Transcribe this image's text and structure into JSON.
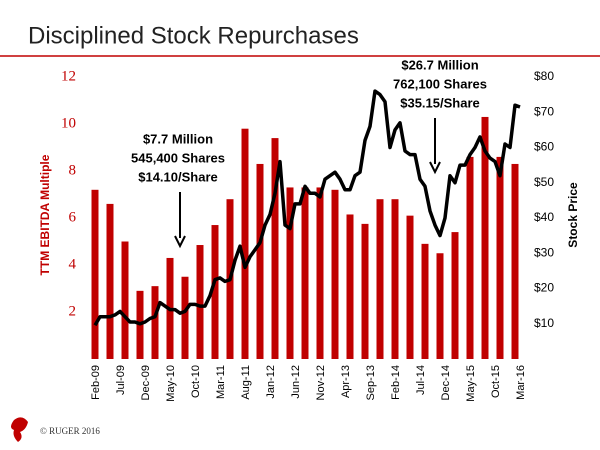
{
  "chart_data": {
    "type": "bar",
    "title": "Disciplined Stock Repurchases",
    "ylabel": "TTM EBITDA Multiple",
    "y2label": "Stock Price",
    "footer": "© RUGER 2016",
    "categories": [
      "Feb-09",
      null,
      null,
      null,
      null,
      "Jul-09",
      null,
      null,
      null,
      null,
      "Dec-09",
      null,
      null,
      null,
      null,
      "May-10",
      null,
      null,
      null,
      null,
      "Oct-10",
      null,
      null,
      null,
      null,
      "Mar-11",
      null,
      null,
      null,
      null,
      "Aug-11",
      null,
      null,
      null,
      null,
      "Jan-12",
      null,
      null,
      null,
      null,
      "Jun-12",
      null,
      null,
      null,
      null,
      "Nov-12",
      null,
      null,
      null,
      null,
      "Apr-13",
      null,
      null,
      null,
      null,
      "Sep-13",
      null,
      null,
      null,
      null,
      "Feb-14",
      null,
      null,
      null,
      null,
      "Jul-14",
      null,
      null,
      null,
      null,
      "Dec-14",
      null,
      null,
      null,
      null,
      "May-15",
      null,
      null,
      null,
      null,
      "Oct-15",
      null,
      null,
      null,
      null,
      "Mar-16"
    ],
    "series": [
      {
        "type": "bar",
        "color": "#c00000",
        "values": [
          7.2,
          null,
          null,
          6.6,
          null,
          null,
          5.0,
          null,
          null,
          2.9,
          null,
          null,
          3.1,
          null,
          null,
          4.3,
          null,
          null,
          3.5,
          null,
          null,
          4.85,
          null,
          null,
          5.7,
          null,
          null,
          6.8,
          null,
          null,
          9.8,
          null,
          null,
          8.3,
          null,
          null,
          9.4,
          null,
          null,
          7.3,
          null,
          null,
          7.3,
          null,
          null,
          7.3,
          null,
          null,
          7.2,
          null,
          null,
          6.15,
          null,
          null,
          5.75,
          null,
          null,
          6.8,
          null,
          null,
          6.8,
          null,
          null,
          6.1,
          null,
          null,
          4.9,
          null,
          null,
          4.5,
          null,
          null,
          5.4,
          null,
          null,
          8.6,
          null,
          null,
          10.3,
          null,
          null,
          8.6,
          null,
          null,
          8.3,
          null
        ]
      },
      {
        "type": "line",
        "axis": "y2",
        "color": "#000000",
        "values": [
          9.6,
          12,
          12,
          12,
          12.5,
          13.5,
          12,
          10.5,
          10.5,
          10,
          10.5,
          11.5,
          12,
          16,
          15,
          14,
          14,
          13,
          13.5,
          15.5,
          15.5,
          15,
          15,
          18,
          22.5,
          23,
          22,
          22.5,
          28,
          32,
          26,
          29,
          31,
          33,
          38,
          41,
          47,
          56,
          38,
          37,
          44,
          44,
          49,
          47,
          47,
          46,
          51,
          52,
          53,
          51,
          48,
          48,
          52,
          53,
          62,
          66,
          76,
          75,
          73,
          60,
          65,
          67,
          59,
          58,
          58,
          51,
          49,
          42,
          38,
          35,
          40,
          52,
          50,
          55,
          55,
          58,
          60,
          63,
          59,
          57,
          56,
          52,
          61,
          60,
          72,
          71.5
        ]
      }
    ],
    "ylim": [
      0,
      12
    ],
    "yticks": [
      2,
      4,
      6,
      8,
      10,
      12
    ],
    "y2lim": [
      0,
      80
    ],
    "y2ticks": [
      {
        "value": 10,
        "label": "$10"
      },
      {
        "value": 20,
        "label": "$20"
      },
      {
        "value": 30,
        "label": "$30"
      },
      {
        "value": 40,
        "label": "$40"
      },
      {
        "value": 50,
        "label": "$50"
      },
      {
        "value": 60,
        "label": "$60"
      },
      {
        "value": 70,
        "label": "$70"
      },
      {
        "value": 80,
        "label": "$80"
      }
    ],
    "annotations": [
      {
        "lines": [
          "$7.7 Million",
          "545,400 Shares",
          "$14.10/Share"
        ]
      },
      {
        "lines": [
          "$26.7 Million",
          "762,100 Shares",
          "$35.15/Share"
        ]
      }
    ]
  }
}
